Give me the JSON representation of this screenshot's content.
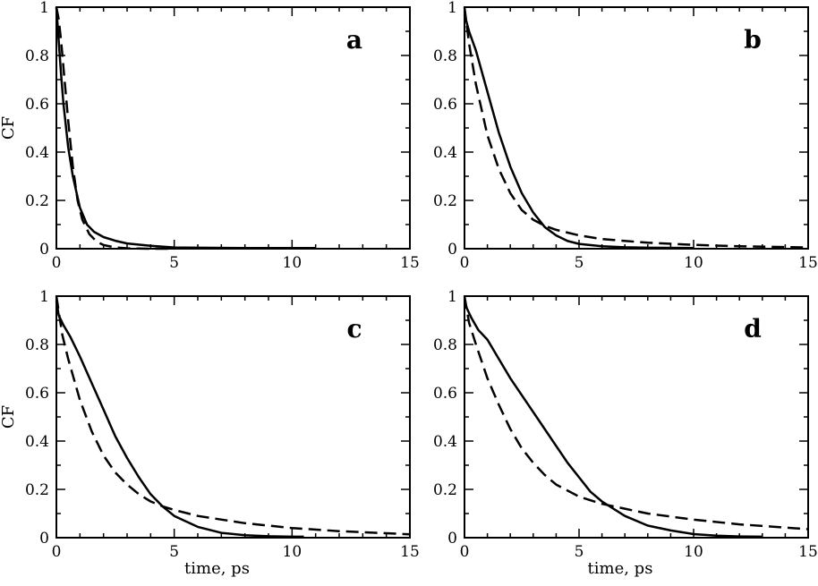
{
  "chart_data": [
    {
      "type": "line",
      "panel": "a",
      "xlabel": "",
      "ylabel": "CF",
      "xlim": [
        0,
        15
      ],
      "ylim": [
        0,
        1
      ],
      "xticks": [
        "0",
        "5",
        "10",
        "15"
      ],
      "yticks": [
        "0",
        "0.2",
        "0.4",
        "0.6",
        "0.8",
        "1"
      ],
      "series": [
        {
          "name": "solid",
          "style": "solid",
          "x": [
            0,
            0.1,
            0.2,
            0.3,
            0.5,
            0.7,
            1.0,
            1.3,
            1.6,
            2.0,
            2.5,
            3.0,
            4.0,
            5.0,
            6.0,
            8.0,
            10.0,
            11.0
          ],
          "y": [
            1.0,
            0.86,
            0.72,
            0.6,
            0.42,
            0.3,
            0.17,
            0.1,
            0.07,
            0.048,
            0.033,
            0.022,
            0.012,
            0.005,
            0.004,
            0.003,
            0.003,
            0.003
          ]
        },
        {
          "name": "dashed",
          "style": "dashed",
          "x": [
            0,
            0.1,
            0.2,
            0.3,
            0.5,
            0.7,
            0.9,
            1.1,
            1.4,
            1.7,
            2.0,
            2.5,
            3.0,
            4.0,
            5.0
          ],
          "y": [
            1.0,
            0.95,
            0.86,
            0.75,
            0.53,
            0.34,
            0.2,
            0.12,
            0.06,
            0.03,
            0.015,
            0.005,
            0.002,
            0.0,
            0.0
          ]
        }
      ]
    },
    {
      "type": "line",
      "panel": "b",
      "xlabel": "",
      "ylabel": "",
      "xlim": [
        0,
        15
      ],
      "ylim": [
        0,
        1
      ],
      "xticks": [
        "0",
        "5",
        "10",
        "15"
      ],
      "yticks": [
        "0",
        "0.2",
        "0.4",
        "0.6",
        "0.8",
        "1"
      ],
      "series": [
        {
          "name": "solid",
          "style": "solid",
          "x": [
            0,
            0.2,
            0.5,
            1.0,
            1.5,
            2.0,
            2.5,
            3.0,
            3.5,
            4.0,
            4.5,
            5.0,
            6.0,
            7.0,
            8.0,
            10.0
          ],
          "y": [
            0.97,
            0.9,
            0.82,
            0.65,
            0.48,
            0.34,
            0.23,
            0.15,
            0.09,
            0.055,
            0.032,
            0.02,
            0.01,
            0.006,
            0.004,
            0.003
          ]
        },
        {
          "name": "dashed",
          "style": "dashed",
          "x": [
            0,
            0.2,
            0.5,
            1.0,
            1.5,
            2.0,
            2.5,
            3.0,
            3.5,
            4.0,
            5.0,
            6.0,
            8.0,
            10.0,
            12.0,
            15.0
          ],
          "y": [
            1.0,
            0.85,
            0.68,
            0.47,
            0.33,
            0.23,
            0.16,
            0.12,
            0.095,
            0.078,
            0.055,
            0.04,
            0.025,
            0.016,
            0.01,
            0.005
          ]
        }
      ]
    },
    {
      "type": "line",
      "panel": "c",
      "xlabel": "time, ps",
      "ylabel": "CF",
      "xlim": [
        0,
        15
      ],
      "ylim": [
        0,
        1
      ],
      "xticks": [
        "0",
        "5",
        "10",
        "15"
      ],
      "yticks": [
        "0",
        "0.2",
        "0.4",
        "0.6",
        "0.8",
        "1"
      ],
      "series": [
        {
          "name": "solid",
          "style": "solid",
          "x": [
            0,
            0.1,
            0.3,
            0.6,
            1.0,
            1.5,
            2.0,
            2.5,
            3.0,
            3.5,
            4.0,
            4.5,
            5.0,
            6.0,
            7.0,
            8.0,
            9.0,
            10.0,
            10.5
          ],
          "y": [
            0.98,
            0.92,
            0.88,
            0.83,
            0.75,
            0.64,
            0.53,
            0.42,
            0.33,
            0.25,
            0.18,
            0.13,
            0.09,
            0.045,
            0.02,
            0.01,
            0.006,
            0.004,
            0.004
          ]
        },
        {
          "name": "dashed",
          "style": "dashed",
          "x": [
            0,
            0.25,
            0.5,
            1.0,
            1.5,
            2.0,
            2.5,
            3.0,
            3.5,
            4.0,
            4.5,
            5.0,
            6.0,
            8.0,
            10.0,
            12.0,
            15.0
          ],
          "y": [
            1.0,
            0.84,
            0.74,
            0.57,
            0.44,
            0.34,
            0.27,
            0.22,
            0.18,
            0.15,
            0.13,
            0.115,
            0.09,
            0.06,
            0.04,
            0.027,
            0.014
          ]
        }
      ]
    },
    {
      "type": "line",
      "panel": "d",
      "xlabel": "time, ps",
      "ylabel": "",
      "xlim": [
        0,
        15
      ],
      "ylim": [
        0,
        1
      ],
      "xticks": [
        "0",
        "5",
        "10",
        "15"
      ],
      "yticks": [
        "0",
        "0.2",
        "0.4",
        "0.6",
        "0.8",
        "1"
      ],
      "series": [
        {
          "name": "solid",
          "style": "solid",
          "x": [
            0,
            0.1,
            0.3,
            0.6,
            1.0,
            1.5,
            2.0,
            2.5,
            3.0,
            3.5,
            4.0,
            4.5,
            5.0,
            5.5,
            6.0,
            7.0,
            8.0,
            9.0,
            10.0,
            11.0,
            12.0,
            13.0
          ],
          "y": [
            0.98,
            0.95,
            0.91,
            0.86,
            0.82,
            0.74,
            0.66,
            0.59,
            0.52,
            0.45,
            0.38,
            0.31,
            0.25,
            0.19,
            0.15,
            0.09,
            0.05,
            0.03,
            0.015,
            0.008,
            0.005,
            0.004
          ]
        },
        {
          "name": "dashed",
          "style": "dashed",
          "x": [
            0,
            0.2,
            0.5,
            1.0,
            1.5,
            2.0,
            2.5,
            3.0,
            3.5,
            4.0,
            5.0,
            6.0,
            7.0,
            8.0,
            10.0,
            12.0,
            15.0
          ],
          "y": [
            1.0,
            0.89,
            0.8,
            0.66,
            0.55,
            0.45,
            0.37,
            0.31,
            0.26,
            0.22,
            0.17,
            0.14,
            0.12,
            0.1,
            0.075,
            0.055,
            0.035
          ]
        }
      ]
    }
  ]
}
